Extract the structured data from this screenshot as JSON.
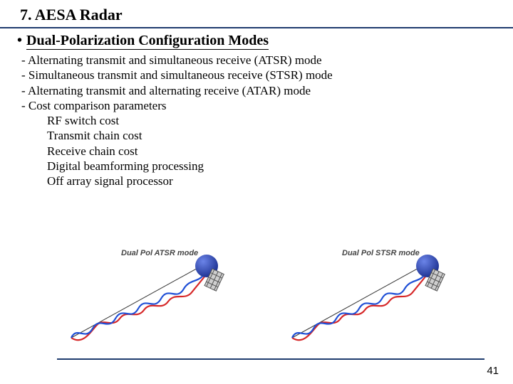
{
  "colors": {
    "text": "#000000",
    "rule": "#1f3c6e",
    "wave_red": "#d62728",
    "wave_blue": "#1f4fd6",
    "sphere": "#1a2f8f",
    "sphere_highlight": "#6b84e8",
    "sat_body": "#cfcfcf",
    "sat_outline": "#555555",
    "label_gray": "#444444"
  },
  "fonts": {
    "title_size": 22,
    "subhead_size": 20,
    "body_size": 17,
    "diag_label_size": 11,
    "pagenum_size": 15
  },
  "title": "7. AESA Radar",
  "subhead": "Dual-Polarization Configuration Modes",
  "body": [
    {
      "level": 0,
      "text": "- Alternating transmit and simultaneous receive (ATSR) mode"
    },
    {
      "level": 0,
      "text": "- Simultaneous transmit and simultaneous receive (STSR) mode"
    },
    {
      "level": 0,
      "text": "- Alternating transmit and alternating receive (ATAR) mode"
    },
    {
      "level": 0,
      "text": "- Cost comparison parameters"
    },
    {
      "level": 1,
      "text": "RF switch cost"
    },
    {
      "level": 1,
      "text": "Transmit chain cost"
    },
    {
      "level": 1,
      "text": "Receive chain cost"
    },
    {
      "level": 1,
      "text": "Digital beamforming processing"
    },
    {
      "level": 1,
      "text": "Off array signal processor"
    }
  ],
  "diagrams": [
    {
      "label": "Dual Pol ATSR mode"
    },
    {
      "label": "Dual Pol STSR mode"
    }
  ],
  "page_number": "41"
}
